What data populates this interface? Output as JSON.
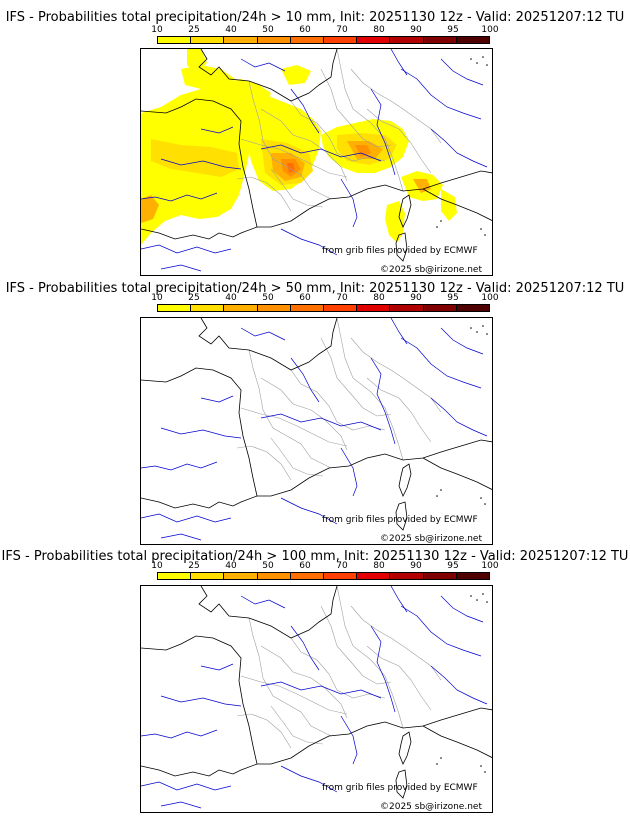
{
  "panels": [
    {
      "title": "IFS - Probabilities total precipitation/24h > 10 mm, Init: 20251130 12z - Valid: 20251207:12 TU",
      "credit_source": "from grib files provided by ECMWF",
      "credit_copyright": "©2025 sb@irizone.net",
      "has_precip": true
    },
    {
      "title": "IFS - Probabilities total precipitation/24h > 50 mm, Init: 20251130 12z - Valid: 20251207:12 TU",
      "credit_source": "from grib files provided by ECMWF",
      "credit_copyright": "©2025 sb@irizone.net",
      "has_precip": false
    },
    {
      "title": "IFS - Probabilities total precipitation/24h > 100 mm, Init: 20251130 12z - Valid: 20251207:12 TU",
      "credit_source": "from grib files provided by ECMWF",
      "credit_copyright": "©2025 sb@irizone.net",
      "has_precip": false
    }
  ],
  "colorbar": {
    "ticks": [
      "10",
      "25",
      "40",
      "50",
      "60",
      "70",
      "80",
      "90",
      "95",
      "100"
    ],
    "colors": [
      "#ffff00",
      "#ffe000",
      "#ffb000",
      "#ff9000",
      "#ff7000",
      "#ff4000",
      "#e00000",
      "#b00000",
      "#800000",
      "#500000"
    ]
  },
  "colors": {
    "coastline": "#000000",
    "borders": "#a0a0a0",
    "rivers": "#0000d0"
  }
}
